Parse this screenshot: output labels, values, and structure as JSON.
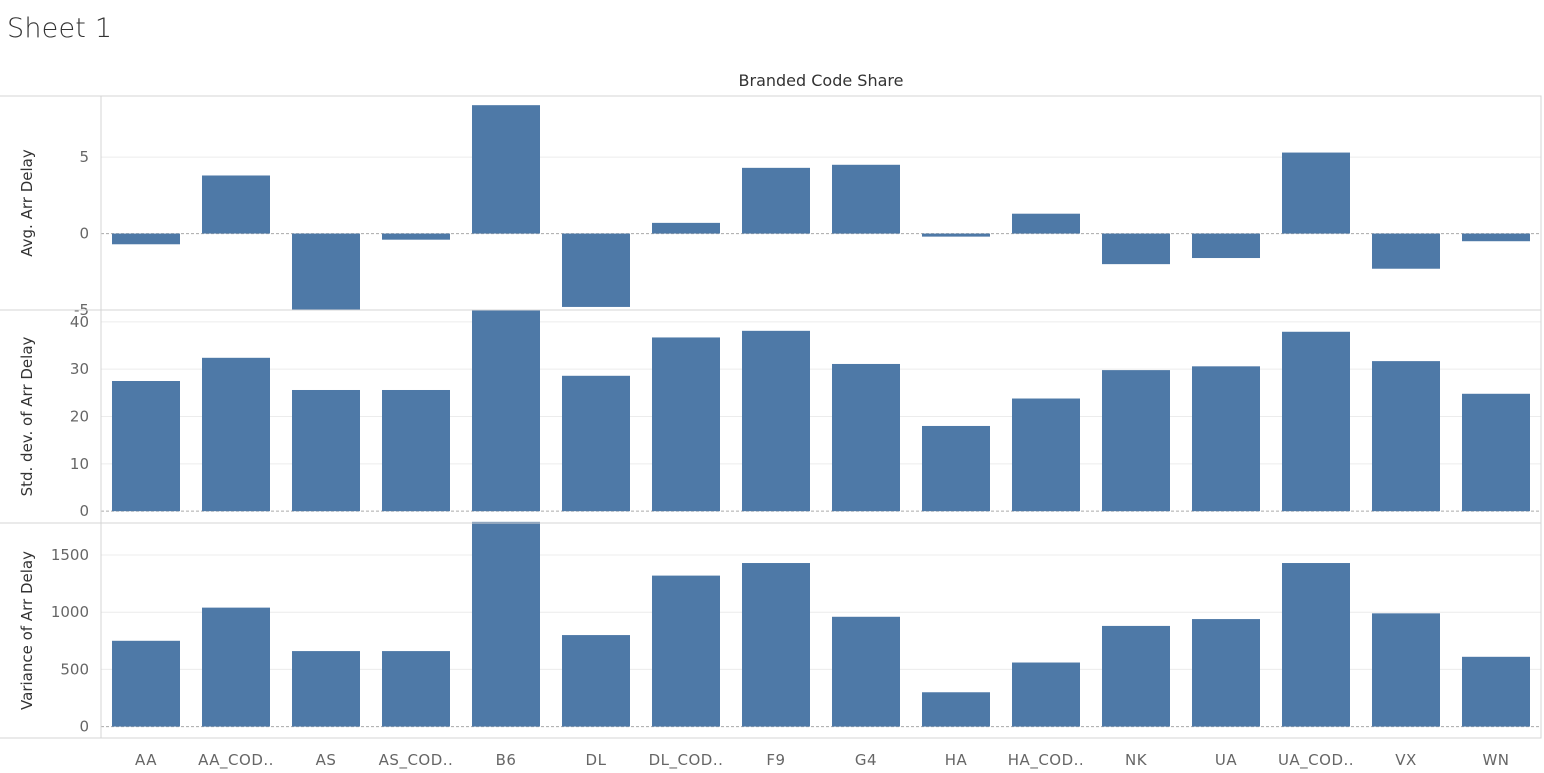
{
  "sheet": {
    "title": "Sheet 1"
  },
  "colors": {
    "bar": "#4e79a7",
    "grid": "#ececec",
    "frame": "#d4d4d4",
    "zero": "#aaaaaa"
  },
  "chart_data": {
    "type": "bar",
    "column_header": "Branded Code Share",
    "categories": [
      "AA",
      "AA_COD..",
      "AS",
      "AS_COD..",
      "B6",
      "DL",
      "DL_COD..",
      "F9",
      "G4",
      "HA",
      "HA_COD..",
      "NK",
      "UA",
      "UA_COD..",
      "VX",
      "WN"
    ],
    "panels": [
      {
        "ylabel": "Avg. Arr Delay",
        "ylim": [
          -5.0,
          9.0
        ],
        "ticks": [
          -5,
          0,
          5
        ],
        "tick_labels": [
          "-5",
          "0",
          "5"
        ],
        "values": [
          -0.7,
          3.8,
          -5.0,
          -0.4,
          8.4,
          -4.8,
          0.7,
          4.3,
          4.5,
          -0.2,
          1.3,
          -2.0,
          -1.6,
          5.3,
          -2.3,
          -0.5
        ]
      },
      {
        "ylabel": "Std. dev. of Arr Delay",
        "ylim": [
          -2.5,
          42.5
        ],
        "ticks": [
          0,
          10,
          20,
          30,
          40
        ],
        "tick_labels": [
          "0",
          "10",
          "20",
          "30",
          "40"
        ],
        "values": [
          27.5,
          32.4,
          25.6,
          25.6,
          42.6,
          28.6,
          36.7,
          38.1,
          31.1,
          18.0,
          23.8,
          29.8,
          30.6,
          37.9,
          31.7,
          24.8
        ]
      },
      {
        "ylabel": "Variance of Arr Delay",
        "ylim": [
          -100,
          1780
        ],
        "ticks": [
          0,
          500,
          1000,
          1500
        ],
        "tick_labels": [
          "0",
          "500",
          "1000",
          "1500"
        ],
        "values": [
          750,
          1040,
          660,
          660,
          1790,
          800,
          1320,
          1430,
          960,
          300,
          560,
          880,
          940,
          1430,
          990,
          610
        ]
      }
    ]
  }
}
